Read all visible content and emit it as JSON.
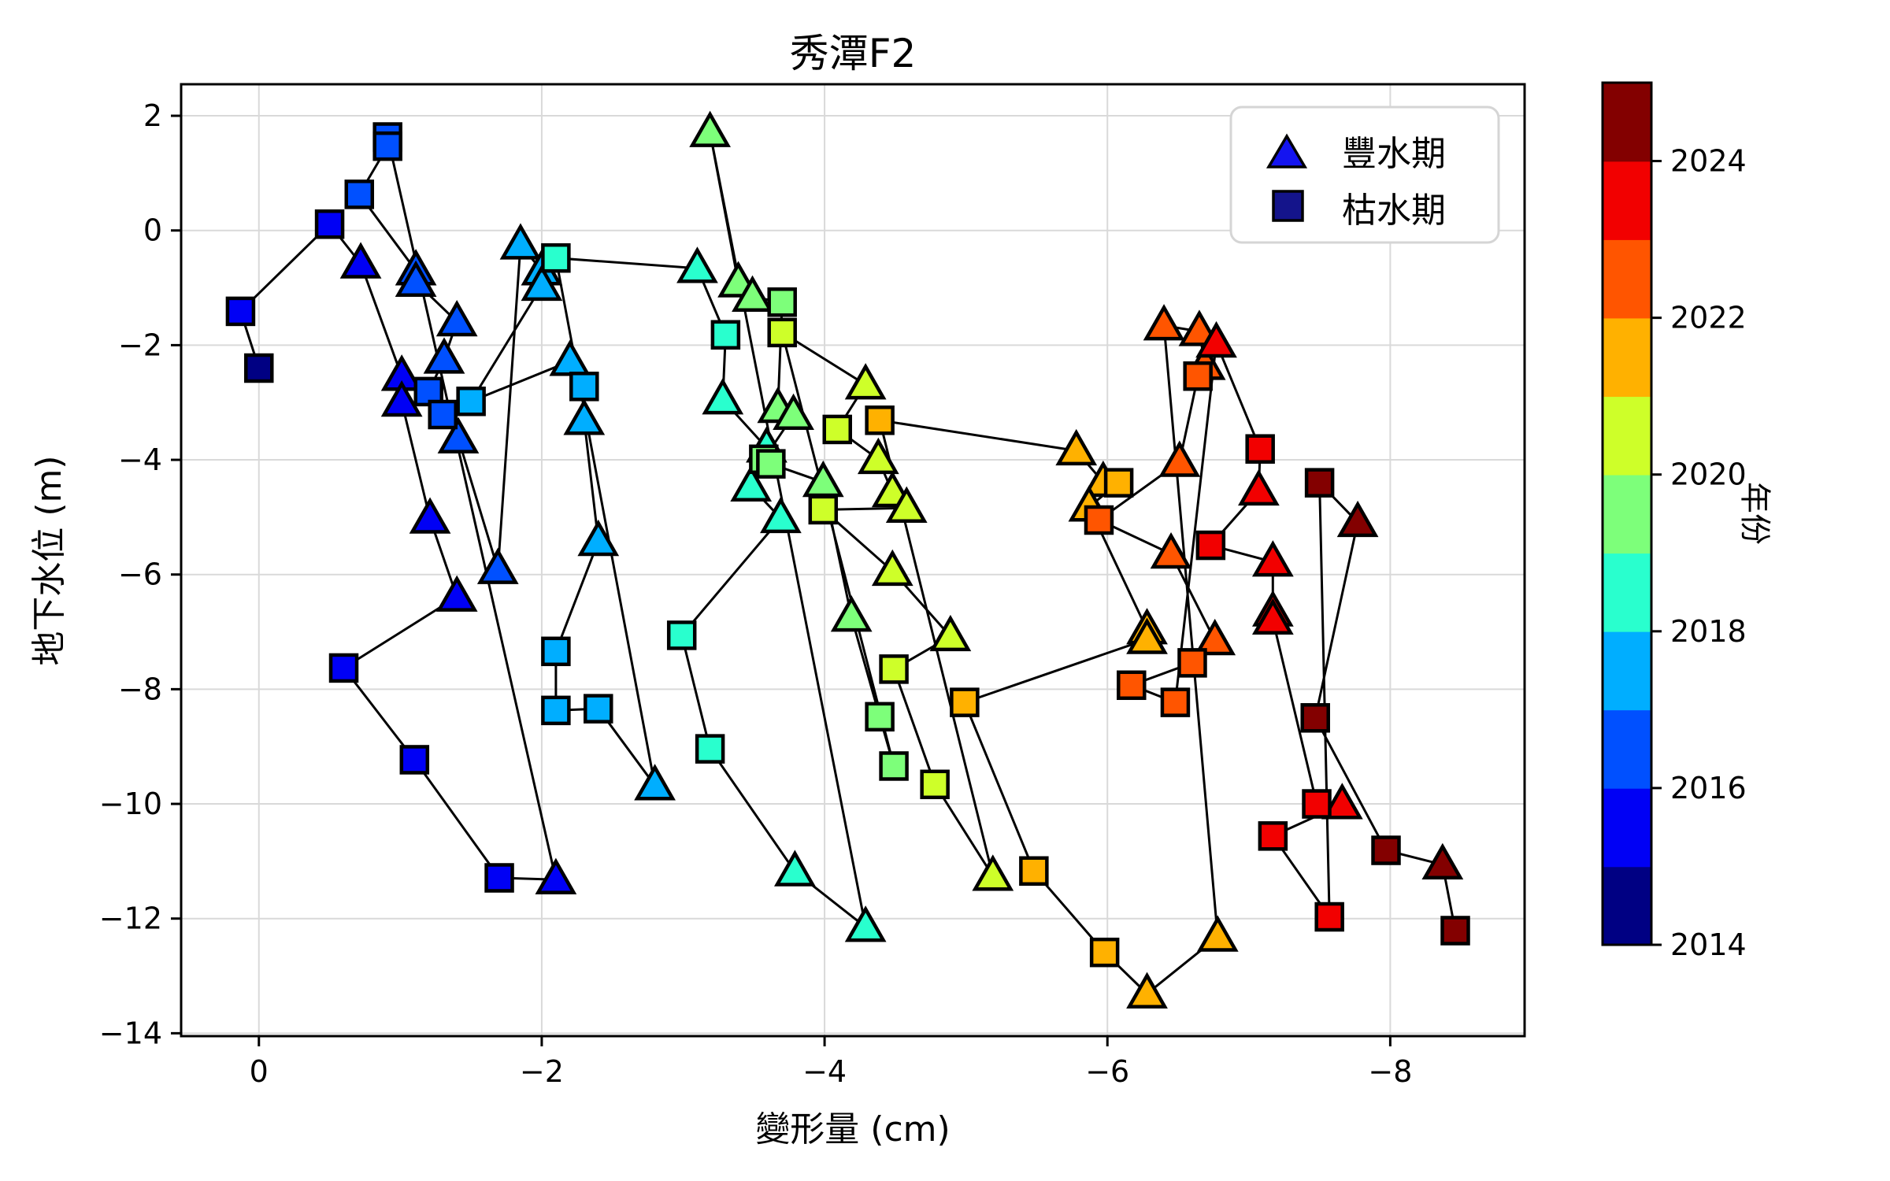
{
  "title": "秀潭F2",
  "xlabel": "變形量 (cm)",
  "ylabel": "地下水位 (m)",
  "legend": [
    {
      "label": "豐水期",
      "marker": "triangle",
      "color": "#1414f0"
    },
    {
      "label": "枯水期",
      "marker": "square",
      "color": "#14148b"
    }
  ],
  "colorbar": {
    "label": "年份",
    "tick_labels": [
      2014,
      2016,
      2018,
      2020,
      2022,
      2024
    ],
    "year_min": 2014,
    "year_max": 2025,
    "segment_colors_bottom_to_top": [
      "#000083",
      "#0000f5",
      "#0050ff",
      "#00aeff",
      "#29ffce",
      "#7dff7a",
      "#ceff29",
      "#ffb100",
      "#ff5500",
      "#f20000",
      "#830000"
    ]
  },
  "year_colors": {
    "2014": "#000083",
    "2015": "#0000f5",
    "2016": "#0050ff",
    "2017": "#00aeff",
    "2018": "#29ffce",
    "2019": "#7dff7a",
    "2020": "#ceff29",
    "2021": "#ffb100",
    "2022": "#ff5500",
    "2023": "#f20000",
    "2024": "#830000"
  },
  "chart_data": {
    "type": "scatter",
    "title": "秀潭F2",
    "xlabel": "變形量 (cm)",
    "ylabel": "地下水位 (m)",
    "xlim": [
      0.55,
      -8.95
    ],
    "ylim": [
      2.55,
      -14.05
    ],
    "xticks": [
      0,
      -2,
      -4,
      -6,
      -8
    ],
    "yticks": [
      2,
      0,
      -2,
      -4,
      -6,
      -8,
      -10,
      -12,
      -14
    ],
    "grid": true,
    "line_color": "#000000",
    "point_format": [
      "x_cm",
      "y_m",
      "season (w=豐水期/triangle, d=枯水期/square)",
      "year"
    ],
    "points": [
      [
        0.0,
        -2.4,
        "d",
        2014
      ],
      [
        0.13,
        -1.41,
        "d",
        2015
      ],
      [
        -0.5,
        0.11,
        "d",
        2015
      ],
      [
        -0.72,
        -0.58,
        "w",
        2015
      ],
      [
        -1.01,
        -2.54,
        "w",
        2015
      ],
      [
        -1.01,
        -2.99,
        "w",
        2015
      ],
      [
        -1.21,
        -5.03,
        "w",
        2015
      ],
      [
        -1.4,
        -6.39,
        "w",
        2015
      ],
      [
        -0.6,
        -7.63,
        "d",
        2015
      ],
      [
        -1.1,
        -9.23,
        "d",
        2015
      ],
      [
        -1.7,
        -11.29,
        "d",
        2015
      ],
      [
        -2.1,
        -11.32,
        "w",
        2015
      ],
      [
        -0.91,
        1.63,
        "d",
        2016
      ],
      [
        -0.91,
        1.47,
        "d",
        2016
      ],
      [
        -0.71,
        0.63,
        "d",
        2016
      ],
      [
        -1.11,
        -0.7,
        "w",
        2016
      ],
      [
        -1.11,
        -0.9,
        "w",
        2016
      ],
      [
        -1.4,
        -1.59,
        "w",
        2016
      ],
      [
        -1.31,
        -2.24,
        "w",
        2016
      ],
      [
        -1.2,
        -2.81,
        "d",
        2016
      ],
      [
        -1.3,
        -3.21,
        "d",
        2016
      ],
      [
        -1.41,
        -3.63,
        "w",
        2016
      ],
      [
        -1.69,
        -5.91,
        "w",
        2016
      ],
      [
        -1.85,
        -0.25,
        "w",
        2017
      ],
      [
        -2.0,
        -0.7,
        "w",
        2017
      ],
      [
        -2.0,
        -0.97,
        "w",
        2017
      ],
      [
        -1.5,
        -2.98,
        "d",
        2017
      ],
      [
        -2.2,
        -2.28,
        "w",
        2017
      ],
      [
        -2.3,
        -2.72,
        "d",
        2017
      ],
      [
        -2.3,
        -3.31,
        "w",
        2017
      ],
      [
        -2.4,
        -5.42,
        "w",
        2017
      ],
      [
        -2.1,
        -7.34,
        "d",
        2017
      ],
      [
        -2.1,
        -8.37,
        "d",
        2017
      ],
      [
        -2.4,
        -8.34,
        "d",
        2017
      ],
      [
        -2.8,
        -9.68,
        "w",
        2017
      ],
      [
        -2.1,
        -0.48,
        "d",
        2018
      ],
      [
        -3.1,
        -0.66,
        "w",
        2018
      ],
      [
        -3.3,
        -1.82,
        "d",
        2018
      ],
      [
        -3.28,
        -2.95,
        "w",
        2018
      ],
      [
        -3.59,
        -3.79,
        "w",
        2018
      ],
      [
        -3.48,
        -4.47,
        "w",
        2018
      ],
      [
        -3.69,
        -5.02,
        "w",
        2018
      ],
      [
        -2.99,
        -7.06,
        "d",
        2018
      ],
      [
        -3.19,
        -9.04,
        "d",
        2018
      ],
      [
        -3.79,
        -11.18,
        "w",
        2018
      ],
      [
        -4.29,
        -12.15,
        "w",
        2018
      ],
      [
        -3.19,
        1.71,
        "w",
        2019
      ],
      [
        -3.39,
        -0.91,
        "w",
        2019
      ],
      [
        -3.49,
        -1.16,
        "w",
        2019
      ],
      [
        -3.7,
        -1.25,
        "d",
        2019
      ],
      [
        -3.67,
        -3.1,
        "w",
        2019
      ],
      [
        -3.78,
        -3.22,
        "w",
        2019
      ],
      [
        -3.57,
        -3.99,
        "d",
        2019
      ],
      [
        -3.62,
        -4.07,
        "d",
        2019
      ],
      [
        -3.99,
        -4.39,
        "w",
        2019
      ],
      [
        -4.19,
        -6.74,
        "w",
        2019
      ],
      [
        -4.39,
        -8.48,
        "d",
        2019
      ],
      [
        -4.49,
        -9.34,
        "d",
        2019
      ],
      [
        -3.7,
        -1.78,
        "d",
        2020
      ],
      [
        -4.29,
        -2.69,
        "w",
        2020
      ],
      [
        -4.09,
        -3.47,
        "d",
        2020
      ],
      [
        -4.38,
        -3.99,
        "w",
        2020
      ],
      [
        -4.48,
        -4.57,
        "w",
        2020
      ],
      [
        -4.58,
        -4.84,
        "w",
        2020
      ],
      [
        -3.99,
        -4.87,
        "d",
        2020
      ],
      [
        -4.48,
        -5.94,
        "w",
        2020
      ],
      [
        -4.89,
        -7.08,
        "w",
        2020
      ],
      [
        -4.49,
        -7.65,
        "d",
        2020
      ],
      [
        -4.78,
        -9.66,
        "d",
        2020
      ],
      [
        -5.19,
        -11.26,
        "w",
        2020
      ],
      [
        -4.39,
        -3.31,
        "d",
        2021
      ],
      [
        -5.78,
        -3.84,
        "w",
        2021
      ],
      [
        -5.97,
        -4.39,
        "w",
        2021
      ],
      [
        -6.08,
        -4.4,
        "d",
        2021
      ],
      [
        -5.87,
        -4.82,
        "w",
        2021
      ],
      [
        -6.28,
        -6.96,
        "w",
        2021
      ],
      [
        -6.28,
        -7.13,
        "w",
        2021
      ],
      [
        -4.99,
        -8.23,
        "d",
        2021
      ],
      [
        -5.48,
        -11.17,
        "d",
        2021
      ],
      [
        -5.98,
        -12.59,
        "d",
        2021
      ],
      [
        -6.28,
        -13.31,
        "w",
        2021
      ],
      [
        -6.78,
        -12.32,
        "w",
        2021
      ],
      [
        -6.4,
        -1.66,
        "w",
        2022
      ],
      [
        -6.65,
        -1.76,
        "w",
        2022
      ],
      [
        -6.69,
        -2.35,
        "w",
        2022
      ],
      [
        -6.64,
        -2.54,
        "d",
        2022
      ],
      [
        -6.51,
        -4.04,
        "w",
        2022
      ],
      [
        -5.94,
        -5.05,
        "d",
        2022
      ],
      [
        -6.45,
        -5.64,
        "w",
        2022
      ],
      [
        -6.76,
        -7.15,
        "w",
        2022
      ],
      [
        -6.6,
        -7.54,
        "d",
        2022
      ],
      [
        -6.17,
        -7.93,
        "d",
        2022
      ],
      [
        -6.48,
        -8.23,
        "d",
        2022
      ],
      [
        -6.77,
        -1.96,
        "w",
        2023
      ],
      [
        -7.08,
        -3.81,
        "d",
        2023
      ],
      [
        -7.07,
        -4.54,
        "w",
        2023
      ],
      [
        -6.73,
        -5.49,
        "d",
        2023
      ],
      [
        -7.17,
        -5.78,
        "w",
        2023
      ],
      [
        -7.17,
        -6.65,
        "w",
        2023
      ],
      [
        -7.17,
        -6.79,
        "w",
        2023
      ],
      [
        -7.48,
        -10.0,
        "d",
        2023
      ],
      [
        -7.66,
        -10.01,
        "w",
        2023
      ],
      [
        -7.17,
        -10.56,
        "d",
        2023
      ],
      [
        -7.57,
        -11.97,
        "d",
        2023
      ],
      [
        -7.5,
        -4.4,
        "d",
        2024
      ],
      [
        -7.77,
        -5.09,
        "w",
        2024
      ],
      [
        -7.47,
        -8.5,
        "d",
        2024
      ],
      [
        -7.97,
        -10.81,
        "d",
        2024
      ],
      [
        -8.37,
        -11.06,
        "w",
        2024
      ],
      [
        -8.46,
        -12.21,
        "d",
        2024
      ]
    ]
  }
}
